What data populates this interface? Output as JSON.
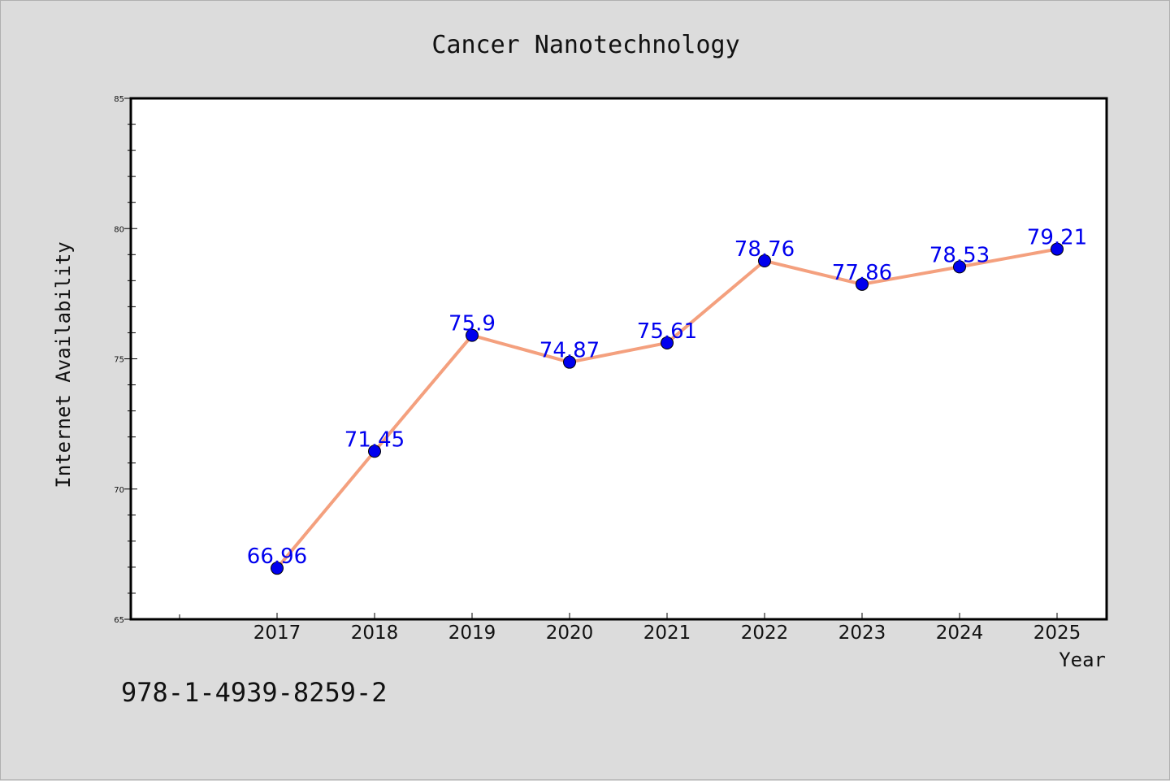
{
  "chart_data": {
    "type": "line",
    "title": "Cancer Nanotechnology",
    "xlabel": "Year",
    "ylabel": "Internet Availability",
    "categories": [
      "2017",
      "2018",
      "2019",
      "2020",
      "2021",
      "2022",
      "2023",
      "2024",
      "2025"
    ],
    "series": [
      {
        "values": [
          66.96,
          71.45,
          75.9,
          74.87,
          75.61,
          78.76,
          77.86,
          78.53,
          79.21
        ],
        "data_labels": [
          "66.96",
          "71.45",
          "75.9",
          "74.87",
          "75.61",
          "78.76",
          "77.86",
          "78.53",
          "79.21"
        ],
        "line_color": "#f4a07e",
        "marker_color": "#0000ee"
      }
    ],
    "ylim": [
      65,
      85
    ],
    "yticks": [
      "65",
      "70",
      "75",
      "80",
      "85"
    ],
    "grid": false,
    "legend": "none"
  },
  "footer": {
    "isbn": "978-1-4939-8259-2"
  }
}
